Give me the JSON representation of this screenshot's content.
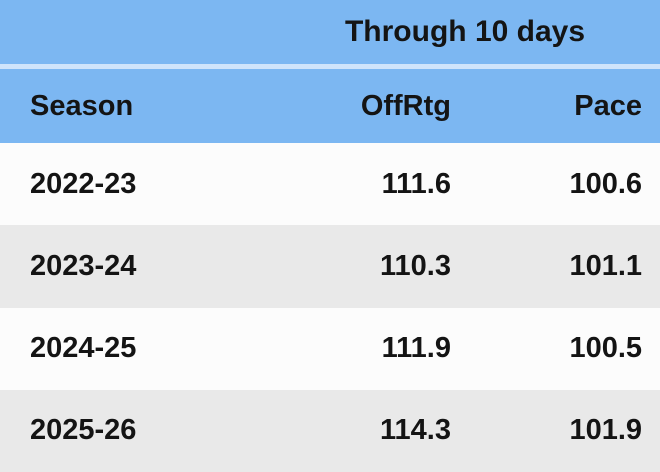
{
  "chart_data": {
    "type": "table",
    "title": "Through 10 days",
    "columns": [
      "Season",
      "OffRtg",
      "Pace"
    ],
    "rows": [
      [
        "2022-23",
        "111.6",
        "100.6"
      ],
      [
        "2023-24",
        "110.3",
        "101.1"
      ],
      [
        "2024-25",
        "111.9",
        "100.5"
      ],
      [
        "2025-26",
        "114.3",
        "101.9"
      ]
    ]
  },
  "colors": {
    "header_blue": "#7cb7f2",
    "header_divider": "#cfe4fb",
    "row_white": "#fcfcfc",
    "row_gray": "#e9e9e9",
    "text": "#141414"
  }
}
